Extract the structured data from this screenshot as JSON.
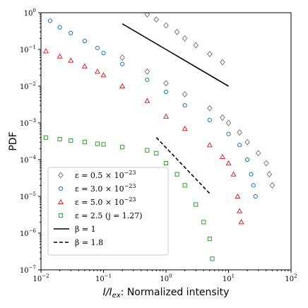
{
  "chart_data": {
    "type": "scatter",
    "xscale": "log",
    "yscale": "log",
    "xlim": [
      0.01,
      100
    ],
    "ylim": [
      1e-07,
      1
    ],
    "xlabel_italic": "I/I",
    "xlabel_sub": "ex",
    "xlabel_rest": ": Normalized intensity",
    "ylabel": "PDF",
    "x_ticks": [
      {
        "base": "10",
        "exp": "−2"
      },
      {
        "base": "10",
        "exp": "−1"
      },
      {
        "base": "10",
        "exp": "0"
      },
      {
        "base": "10",
        "exp": "1"
      },
      {
        "base": "10",
        "exp": "2"
      }
    ],
    "y_ticks": [
      {
        "base": "10",
        "exp": "−7"
      },
      {
        "base": "10",
        "exp": "−6"
      },
      {
        "base": "10",
        "exp": "−5"
      },
      {
        "base": "10",
        "exp": "−4"
      },
      {
        "base": "10",
        "exp": "−3"
      },
      {
        "base": "10",
        "exp": "−2"
      },
      {
        "base": "10",
        "exp": "−1"
      },
      {
        "base": "10",
        "exp": "0"
      }
    ],
    "series": [
      {
        "name": "ε = 0.5 × 10^−23",
        "marker": "diamond",
        "color": "#7f7f7f",
        "points": [
          [
            0.5,
            0.9
          ],
          [
            0.7,
            0.65
          ],
          [
            1,
            0.45
          ],
          [
            1.5,
            0.3
          ],
          [
            2,
            0.2
          ],
          [
            3,
            0.13
          ],
          [
            5,
            0.075
          ],
          [
            8,
            0.045
          ],
          [
            0.2,
            0.06
          ],
          [
            0.5,
            0.025
          ],
          [
            1,
            0.012
          ],
          [
            2,
            0.006
          ],
          [
            5,
            0.0025
          ],
          [
            8,
            0.0014
          ],
          [
            10,
            0.001
          ],
          [
            15,
            0.00055
          ],
          [
            20,
            0.0003
          ],
          [
            30,
            0.00015
          ],
          [
            40,
            8e-05
          ],
          [
            45,
            4e-05
          ],
          [
            50,
            2e-05
          ]
        ]
      },
      {
        "name": "ε = 3.0 × 10^−23",
        "marker": "circle",
        "color": "#1f77b4",
        "points": [
          [
            0.014,
            0.6
          ],
          [
            0.02,
            0.4
          ],
          [
            0.03,
            0.28
          ],
          [
            0.05,
            0.17
          ],
          [
            0.08,
            0.11
          ],
          [
            0.1,
            0.08
          ],
          [
            0.2,
            0.04
          ],
          [
            0.5,
            0.015
          ],
          [
            1,
            0.007
          ],
          [
            2,
            0.003
          ],
          [
            5,
            0.0012
          ],
          [
            10,
            0.0005
          ],
          [
            15,
            0.00025
          ],
          [
            20,
            0.0001
          ],
          [
            23,
            4e-05
          ],
          [
            25,
            2e-05
          ],
          [
            27,
            1e-05
          ]
        ]
      },
      {
        "name": "ε = 5.0 × 10^−23",
        "marker": "triangle",
        "color": "#d62728",
        "points": [
          [
            0.012,
            0.09
          ],
          [
            0.02,
            0.065
          ],
          [
            0.03,
            0.05
          ],
          [
            0.05,
            0.035
          ],
          [
            0.08,
            0.025
          ],
          [
            0.1,
            0.02
          ],
          [
            0.2,
            0.01
          ],
          [
            0.5,
            0.004
          ],
          [
            1,
            0.0015
          ],
          [
            2,
            0.0007
          ],
          [
            5,
            0.00025
          ],
          [
            8,
            0.00012
          ],
          [
            10,
            8e-05
          ],
          [
            12,
            4e-05
          ],
          [
            14,
            1e-05
          ],
          [
            15,
            4e-06
          ],
          [
            16,
            2e-06
          ]
        ]
      },
      {
        "name": "ε = 2.5 (j = 1.27)",
        "marker": "square",
        "color": "#2ca02c",
        "points": [
          [
            0.012,
            0.0004
          ],
          [
            0.02,
            0.00036
          ],
          [
            0.03,
            0.00033
          ],
          [
            0.05,
            0.0003
          ],
          [
            0.08,
            0.00027
          ],
          [
            0.1,
            0.00026
          ],
          [
            0.2,
            0.00022
          ],
          [
            0.5,
            0.00018
          ],
          [
            0.7,
            0.00015
          ],
          [
            1,
            8e-05
          ],
          [
            1.5,
            4e-05
          ],
          [
            2,
            2e-05
          ],
          [
            3,
            6e-06
          ],
          [
            4,
            2e-06
          ],
          [
            5,
            7e-07
          ],
          [
            5.5,
            2e-07
          ]
        ]
      }
    ],
    "reference_lines": [
      {
        "name": "β = 1",
        "style": "solid",
        "slope": -1,
        "x": [
          0.2,
          10
        ],
        "y": [
          0.5,
          0.01
        ]
      },
      {
        "name": "β = 1.8",
        "style": "dashed",
        "slope": -1.8,
        "x": [
          0.7,
          5
        ],
        "y": [
          0.0004,
          1.2e-05
        ]
      }
    ],
    "legend_position": "lower-left",
    "grid": false
  }
}
